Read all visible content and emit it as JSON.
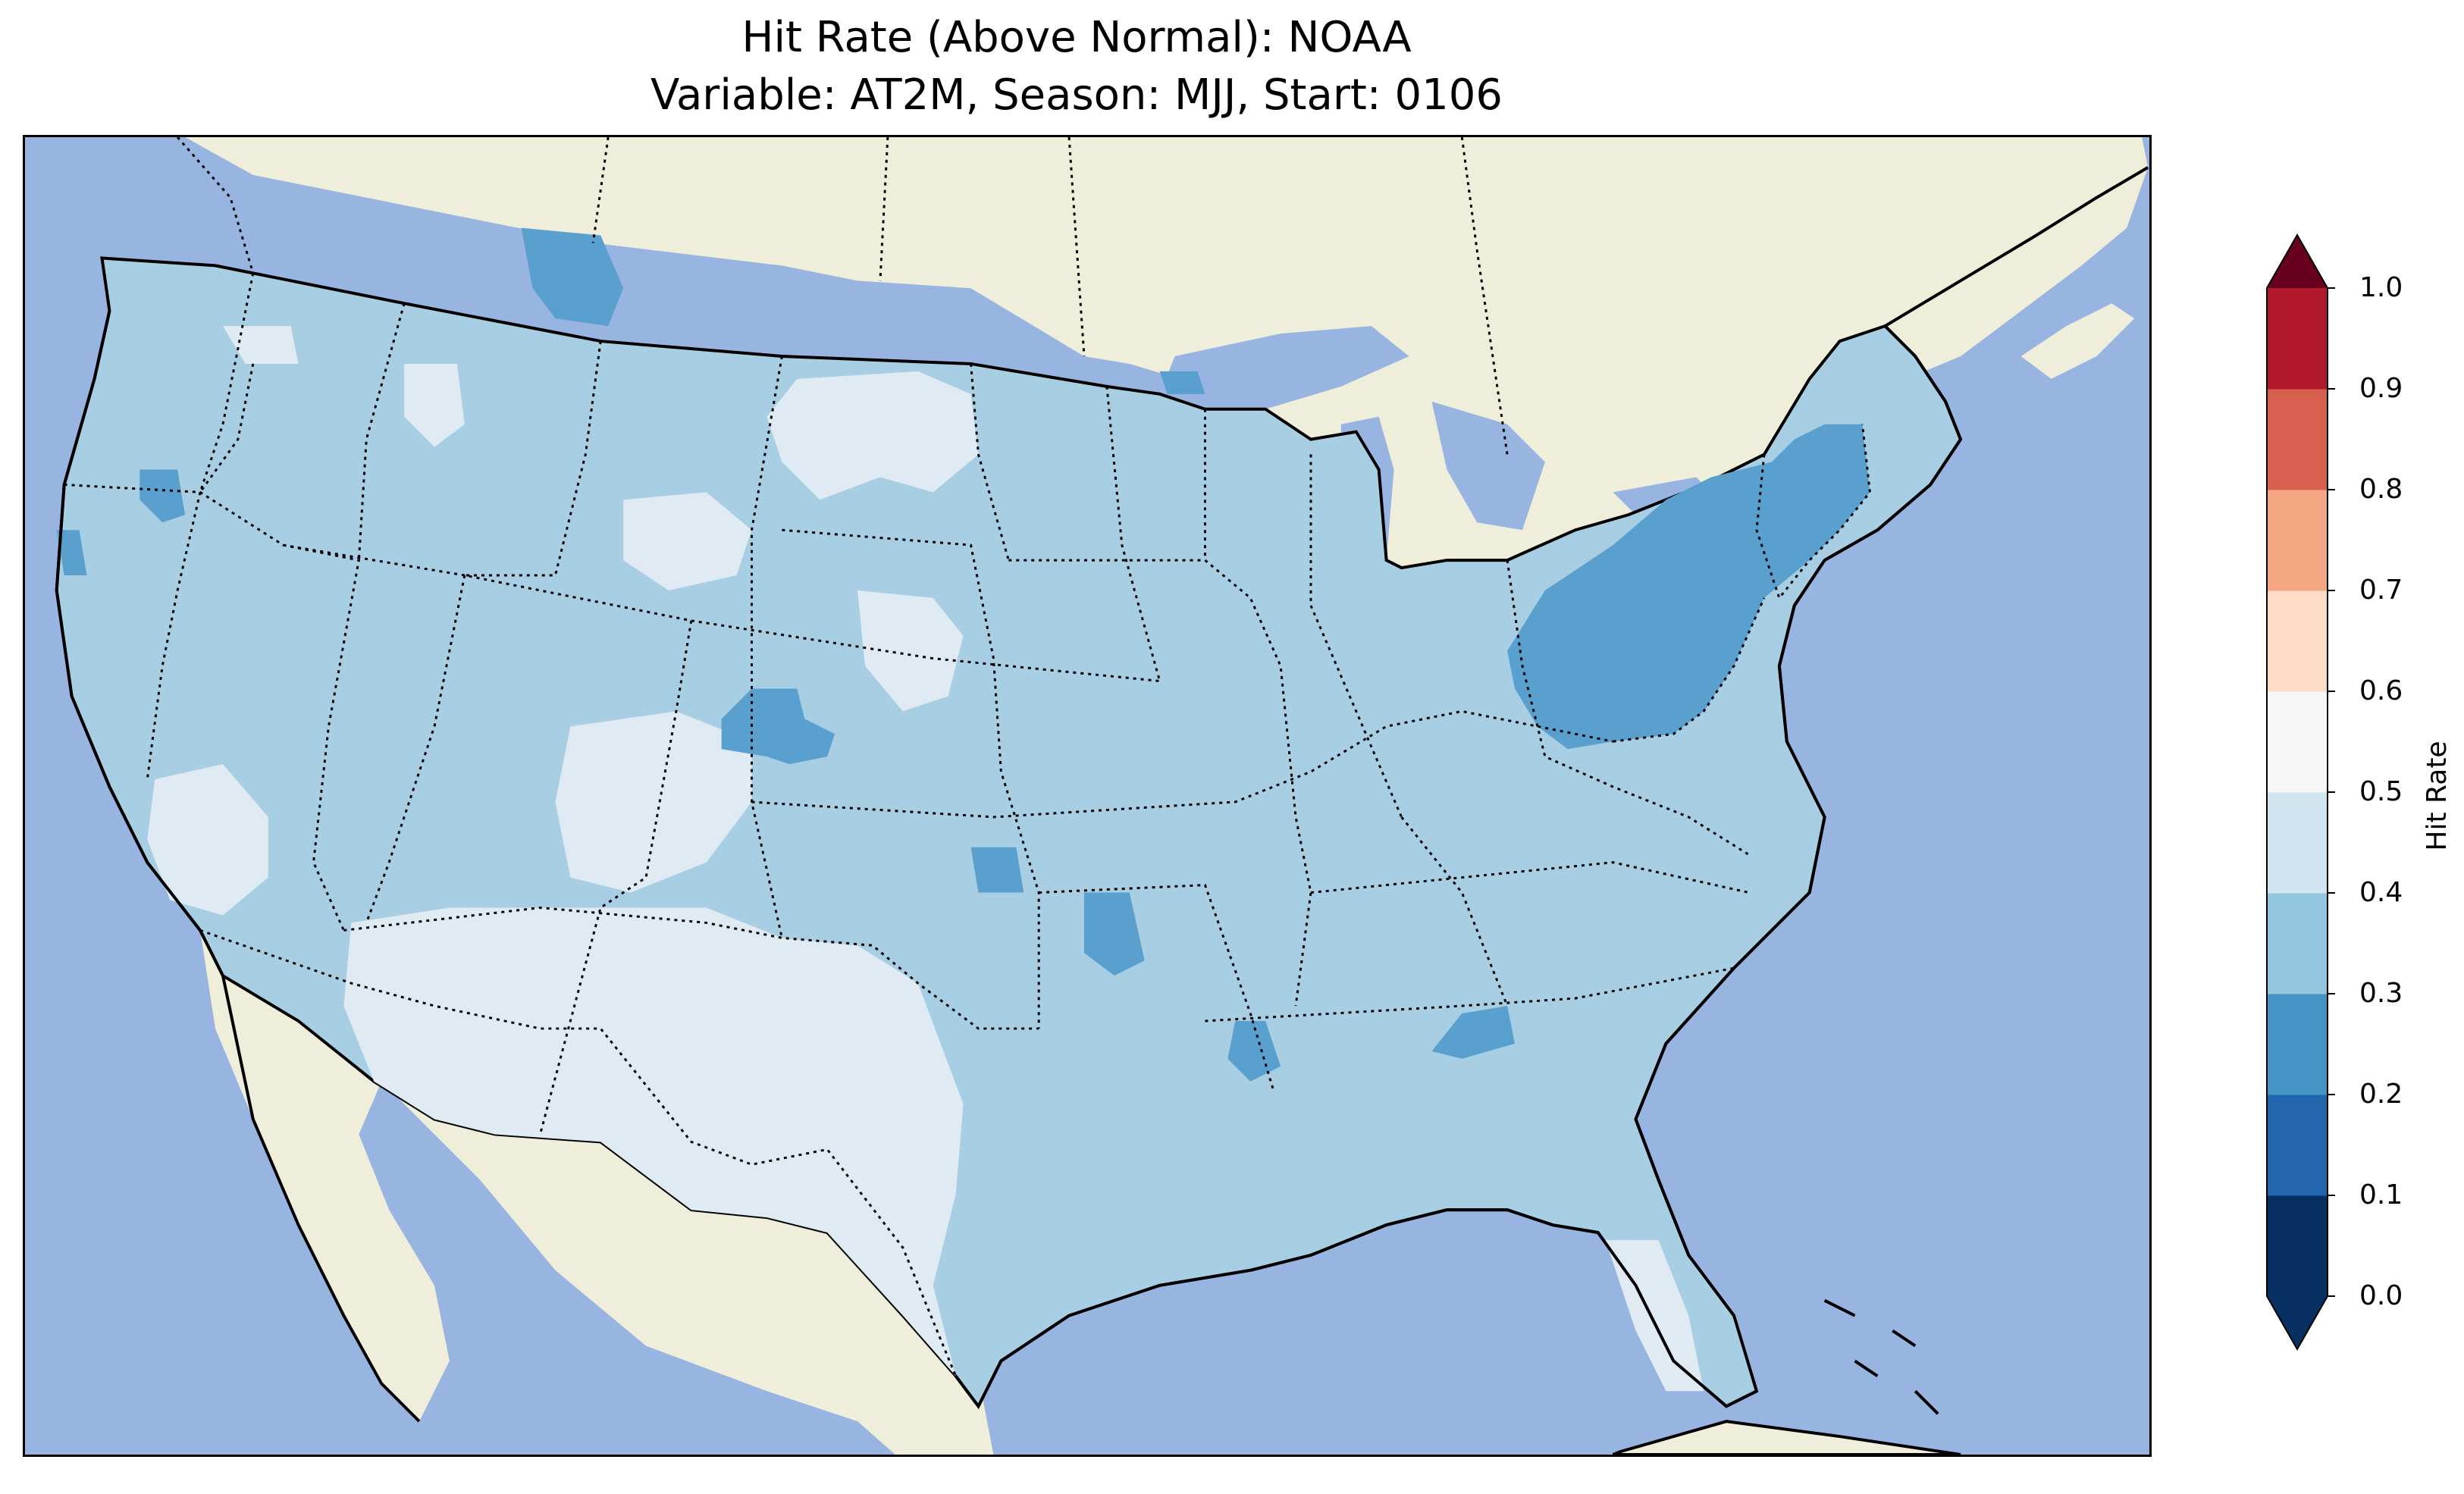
{
  "title": {
    "line1": "Hit Rate (Above Normal): NOAA",
    "line2": "Variable: AT2M, Season: MJJ, Start: 0106"
  },
  "colorbar": {
    "label": "Hit Rate",
    "ticks": [
      "0.0",
      "0.1",
      "0.2",
      "0.3",
      "0.4",
      "0.5",
      "0.6",
      "0.7",
      "0.8",
      "0.9",
      "1.0"
    ],
    "colors": [
      "#053061",
      "#2166ac",
      "#4393c3",
      "#92c5de",
      "#d1e5f0",
      "#f7f7f7",
      "#fddbc7",
      "#f4a582",
      "#d6604d",
      "#b2182b",
      "#67001f"
    ],
    "extend": "both"
  },
  "map": {
    "region": "Contiguous United States",
    "ocean_color": "#98b4e0",
    "land_color": "#efeedb",
    "dominant_bin": "0.3-0.4",
    "regions": [
      {
        "name": "Northeast (NY, PA, New England)",
        "bin": "0.2-0.3"
      },
      {
        "name": "Northern Montana",
        "bin": "0.2-0.3"
      },
      {
        "name": "Eastern Colorado",
        "bin": "0.2-0.3"
      },
      {
        "name": "Central Oklahoma",
        "bin": "0.2-0.3"
      },
      {
        "name": "Arkansas",
        "bin": "0.2-0.3"
      },
      {
        "name": "Gulf Coast spots",
        "bin": "0.2-0.3"
      },
      {
        "name": "Southwest and Texas",
        "bin": "0.4-0.5"
      },
      {
        "name": "Northern Plains",
        "bin": "0.4-0.5"
      },
      {
        "name": "Nevada",
        "bin": "0.4-0.5"
      },
      {
        "name": "South Florida",
        "bin": "0.4-0.5"
      }
    ]
  }
}
